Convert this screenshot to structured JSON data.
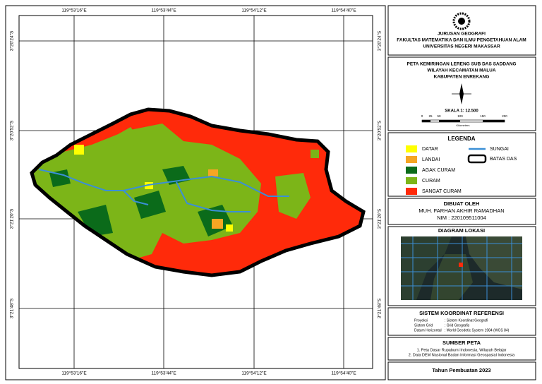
{
  "coordinates": {
    "top": [
      "119°53'16\"E",
      "119°53'44\"E",
      "119°54'12\"E",
      "119°54'40\"E"
    ],
    "bottom": [
      "119°53'16\"E",
      "119°53'44\"E",
      "119°54'12\"E",
      "119°54'40\"E"
    ],
    "left": [
      "3°20'24\"S",
      "3°20'52\"S",
      "3°21'20\"S",
      "3°21'48\"S"
    ],
    "right": [
      "3°20'24\"S",
      "3°20'52\"S",
      "3°21'20\"S",
      "3°21'48\"S"
    ]
  },
  "header": {
    "lines": [
      "JURUSAN GEOGRAFI",
      "FAKULTAS MATEMATIKA DAN ILMU PENGETAHUAN ALAM",
      "UNIVERSITAS NEGERI MAKASSAR"
    ]
  },
  "title": {
    "lines": [
      "PETA KEMIRINGAN LERENG SUB DAS SADDANG",
      "WILAYAH KECAMATAN MALUA",
      "KABUPATEN ENREKANG"
    ],
    "scale": "SKALA 1: 12.500",
    "scale_ticks": [
      "0",
      "25",
      "50",
      "100",
      "150",
      "200"
    ],
    "scale_unit": "Kilometers"
  },
  "legend": {
    "title": "LEGENDA",
    "items": [
      {
        "label": "DATAR",
        "color": "#ffff00"
      },
      {
        "label": "LANDAI",
        "color": "#f5a623"
      },
      {
        "label": "AGAK CURAM",
        "color": "#0b6b1a"
      },
      {
        "label": "CURAM",
        "color": "#7cb518"
      },
      {
        "label": "SANGAT CURAM",
        "color": "#ff2a0a"
      }
    ],
    "lines": [
      {
        "label": "SUNGAI",
        "color": "#3b8fd6"
      },
      {
        "label": "BATAS DAS",
        "color": "#000000"
      }
    ]
  },
  "maker": {
    "title": "DIBUAT OLEH",
    "name": "MUH. FARHAN AKHIR RAMADHAN",
    "nim": "NIM : 220109511004"
  },
  "location": {
    "title": "DIAGRAM LOKASI"
  },
  "coordinate_system": {
    "title": "SISTEM KOORDINAT REFERENSI",
    "rows": [
      [
        "Proyeksi",
        ": Sistem Koordinat Geografi"
      ],
      [
        "Sistem Grid",
        ": Grid Geografis"
      ],
      [
        "Datum Horizontal",
        ": World Geodetic System 1984 (WGS 84)"
      ]
    ]
  },
  "sources": {
    "title": "SUMBER PETA",
    "items": [
      "1. Peta Dasar Rupabumi Indonesia, Wilayah Belajar",
      "2. Data DEM Nasional Badan Informasi Geospasial Indonesia"
    ]
  },
  "year": "Tahun Pembuatan 2023"
}
